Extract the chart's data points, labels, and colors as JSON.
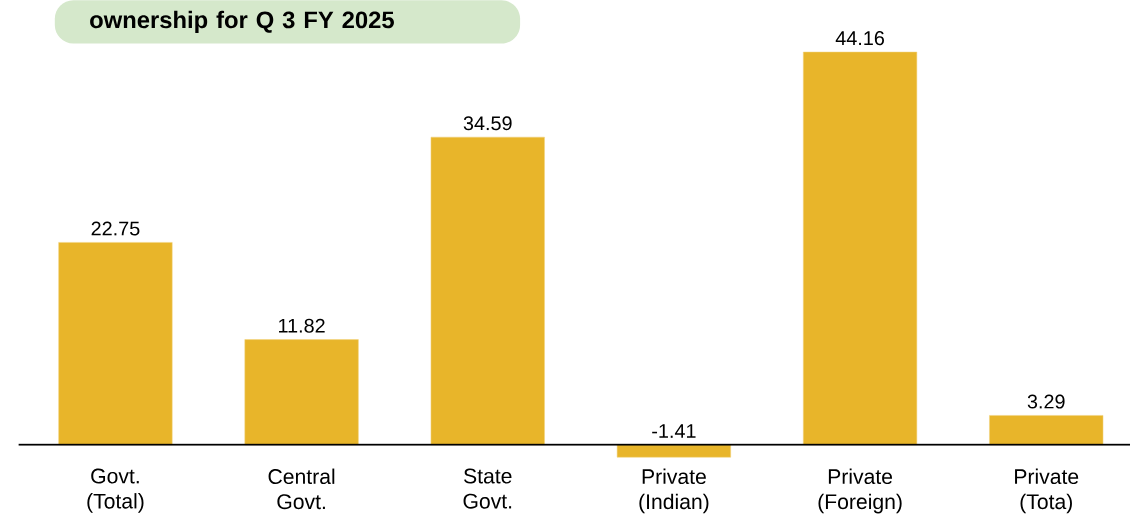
{
  "chart_data": {
    "type": "bar",
    "title": "ownership for Q 3 FY 2025",
    "categories": [
      "Govt. (Total)",
      "Central Govt.",
      "State Govt.",
      "Private (Indian)",
      "Private (Foreign)",
      "Private (Tota)"
    ],
    "values": [
      22.75,
      11.82,
      34.59,
      -1.41,
      44.16,
      3.29
    ],
    "value_labels": [
      "22.75",
      "11.82",
      "34.59",
      "-1.41",
      "44.16",
      "3.29"
    ],
    "color": "#e8b52a"
  }
}
